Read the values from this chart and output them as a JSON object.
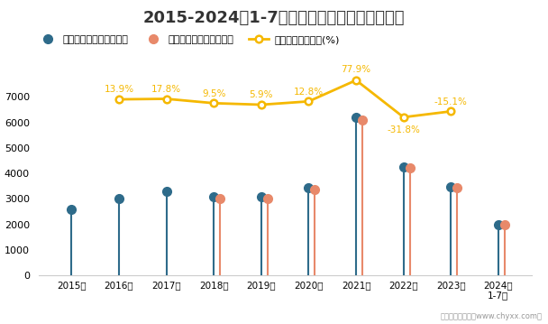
{
  "title": "2015-2024年1-7月医药制造业企业利润统计图",
  "years": [
    "2015年",
    "2016年",
    "2017年",
    "2018年",
    "2019年",
    "2020年",
    "2021年",
    "2022年",
    "2023年",
    "2024年\n1-7月"
  ],
  "profit_total": [
    2600,
    3000,
    3280,
    3080,
    3080,
    3450,
    6200,
    4250,
    3480,
    2000
  ],
  "profit_operating": [
    null,
    null,
    null,
    3020,
    3020,
    3380,
    6100,
    4200,
    3430,
    2000
  ],
  "growth_rate_yvals": [
    null,
    6900,
    6920,
    6750,
    6690,
    6820,
    7650,
    6200,
    6430,
    null
  ],
  "growth_rate_labels": [
    "",
    "13.9%",
    "17.8%",
    "9.5%",
    "5.9%",
    "12.8%",
    "77.9%",
    "-31.8%",
    "-15.1%",
    ""
  ],
  "ylim": [
    0,
    8000
  ],
  "yticks": [
    0,
    1000,
    2000,
    3000,
    4000,
    5000,
    6000,
    7000
  ],
  "color_total": "#2e6b8a",
  "color_operating": "#e8896a",
  "color_growth": "#f5b800",
  "background_color": "#ffffff",
  "legend_labels": [
    "利润总额累计值（亿元）",
    "营业利润累计值（亿元）",
    "利润总额累计增长(%)"
  ],
  "footer": "制图：智研咨询（www.chyxx.com）",
  "watermark1": "智研咨询",
  "watermark2": "www.chyxx.com"
}
